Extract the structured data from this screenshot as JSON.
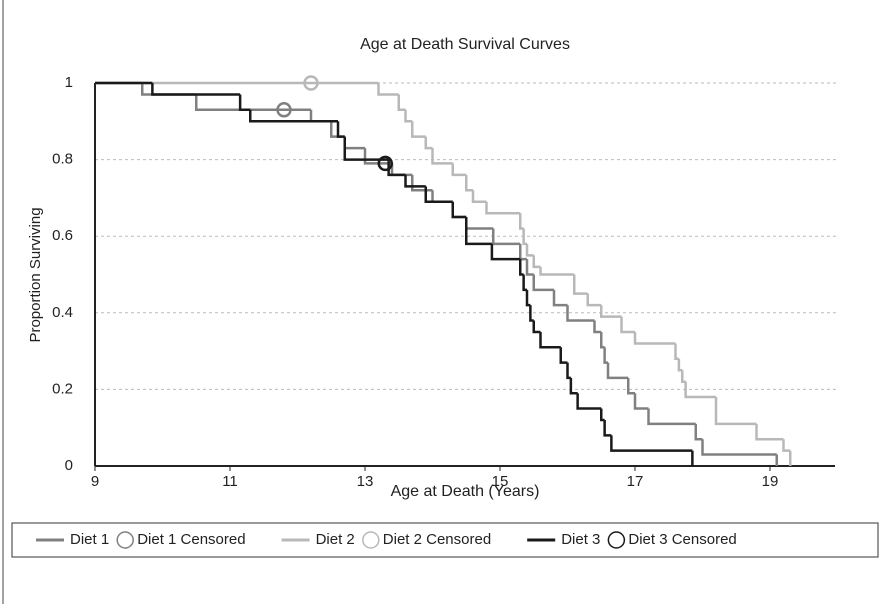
{
  "chart_data": {
    "type": "step",
    "title": "Age at Death Survival Curves",
    "x_label": "Age at Death (Years)",
    "y_label": "Proportion Surviving",
    "xlim": [
      9,
      20
    ],
    "ylim": [
      0,
      1
    ],
    "xticks": [
      9,
      11,
      13,
      15,
      17,
      19
    ],
    "yticks": [
      0,
      0.2,
      0.4,
      0.6,
      0.8,
      1
    ],
    "grid": true,
    "legend": "bottom",
    "series": [
      {
        "name": "Diet 1",
        "color": "#808080",
        "style": "step",
        "x": [
          9,
          9.7,
          10.5,
          12.2,
          12.5,
          12.7,
          13.0,
          13.4,
          13.7,
          14.0,
          14.3,
          14.5,
          14.9,
          15.3,
          15.4,
          15.5,
          15.8,
          16.0,
          16.4,
          16.5,
          16.55,
          16.6,
          16.9,
          17.0,
          17.2,
          17.9,
          18.0,
          19.1
        ],
        "values": [
          1,
          0.97,
          0.93,
          0.9,
          0.86,
          0.83,
          0.79,
          0.76,
          0.72,
          0.69,
          0.65,
          0.62,
          0.58,
          0.54,
          0.5,
          0.46,
          0.42,
          0.38,
          0.35,
          0.31,
          0.27,
          0.23,
          0.19,
          0.15,
          0.11,
          0.07,
          0.03,
          0
        ]
      },
      {
        "name": "Diet 1 Censored",
        "color": "#808080",
        "style": "marker",
        "x": [
          11.8
        ],
        "values": [
          0.93
        ]
      },
      {
        "name": "Diet 2",
        "color": "#b8b8b8",
        "style": "step",
        "x": [
          9,
          13.2,
          13.5,
          13.6,
          13.7,
          13.9,
          14.0,
          14.3,
          14.5,
          14.6,
          14.8,
          15.3,
          15.35,
          15.4,
          15.5,
          15.6,
          16.1,
          16.3,
          16.5,
          16.8,
          17.0,
          17.6,
          17.65,
          17.7,
          17.75,
          18.2,
          18.8,
          19.2,
          19.3
        ],
        "values": [
          1,
          0.97,
          0.93,
          0.9,
          0.86,
          0.83,
          0.79,
          0.76,
          0.72,
          0.69,
          0.66,
          0.62,
          0.58,
          0.55,
          0.52,
          0.5,
          0.45,
          0.42,
          0.39,
          0.35,
          0.32,
          0.28,
          0.25,
          0.22,
          0.18,
          0.11,
          0.07,
          0.04,
          0
        ]
      },
      {
        "name": "Diet 2 Censored",
        "color": "#b8b8b8",
        "style": "marker",
        "x": [
          12.2
        ],
        "values": [
          1
        ]
      },
      {
        "name": "Diet 3",
        "color": "#1a1a1a",
        "style": "step",
        "x": [
          9,
          9.85,
          11.15,
          11.3,
          12.6,
          12.7,
          13.35,
          13.6,
          13.9,
          14.3,
          14.5,
          14.88,
          15.3,
          15.35,
          15.4,
          15.45,
          15.5,
          15.6,
          15.9,
          16.0,
          16.05,
          16.15,
          16.5,
          16.55,
          16.65,
          17.85
        ],
        "values": [
          1,
          0.97,
          0.93,
          0.9,
          0.86,
          0.8,
          0.76,
          0.73,
          0.69,
          0.65,
          0.58,
          0.54,
          0.5,
          0.46,
          0.42,
          0.38,
          0.35,
          0.31,
          0.27,
          0.23,
          0.19,
          0.15,
          0.12,
          0.08,
          0.04,
          0
        ]
      },
      {
        "name": "Diet 3 Censored",
        "color": "#1a1a1a",
        "style": "marker",
        "x": [
          13.3
        ],
        "values": [
          0.79
        ]
      }
    ]
  }
}
